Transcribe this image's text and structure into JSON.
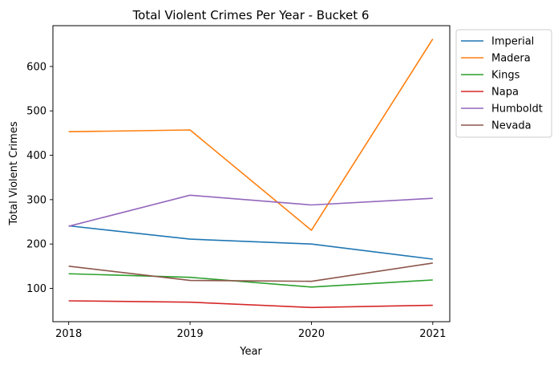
{
  "chart_data": {
    "type": "line",
    "title": "Total Violent Crimes Per Year - Bucket 6",
    "xlabel": "Year",
    "ylabel": "Total Violent Crimes",
    "x": [
      "2018",
      "2019",
      "2020",
      "2021"
    ],
    "xlim": [
      2017.87,
      2021.14
    ],
    "ylim": [
      25,
      692
    ],
    "yticks": [
      "100",
      "200",
      "300",
      "400",
      "500",
      "600"
    ],
    "grid": false,
    "legend_position": "outside-top-right",
    "series": [
      {
        "name": "Imperial",
        "color": "#1f77b4",
        "values": [
          241,
          211,
          200,
          166
        ]
      },
      {
        "name": "Madera",
        "color": "#ff7f0e",
        "values": [
          453,
          457,
          231,
          662
        ]
      },
      {
        "name": "Kings",
        "color": "#2ca02c",
        "values": [
          133,
          125,
          103,
          119
        ]
      },
      {
        "name": "Napa",
        "color": "#d62728",
        "values": [
          72,
          69,
          57,
          62
        ]
      },
      {
        "name": "Humboldt",
        "color": "#9467bd",
        "values": [
          240,
          310,
          288,
          303
        ]
      },
      {
        "name": "Nevada",
        "color": "#8c564b",
        "values": [
          150,
          118,
          116,
          157
        ]
      }
    ]
  }
}
